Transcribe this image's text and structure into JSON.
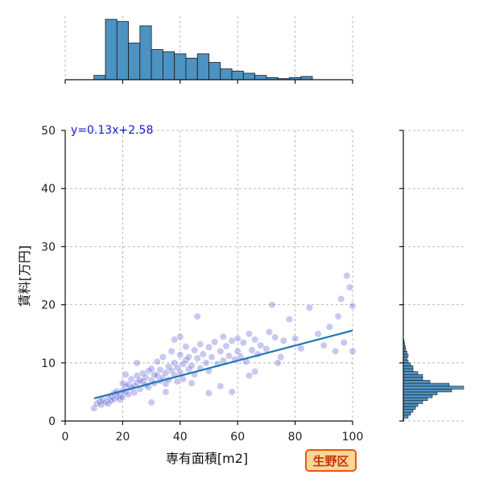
{
  "badge": "生野区",
  "chart_data": [
    {
      "type": "scatter",
      "xlabel": "専有面積[m2]",
      "ylabel": "賃料[万円]",
      "xlim": [
        0,
        100
      ],
      "ylim": [
        0,
        50
      ],
      "xticks": [
        "0",
        "20",
        "40",
        "60",
        "80",
        "100"
      ],
      "yticks": [
        "0",
        "10",
        "20",
        "30",
        "40",
        "50"
      ],
      "grid": true,
      "fit": {
        "equation": "y=0.13x+2.58",
        "slope": 0.13,
        "intercept": 2.58,
        "x_range": [
          10,
          100
        ]
      },
      "points": [
        [
          10,
          2.2
        ],
        [
          11,
          3.0
        ],
        [
          12,
          3.4
        ],
        [
          12.5,
          2.8
        ],
        [
          13,
          3.6
        ],
        [
          14,
          3.2
        ],
        [
          15,
          4.0
        ],
        [
          15,
          3.0
        ],
        [
          16,
          4.3
        ],
        [
          16,
          3.5
        ],
        [
          17,
          3.8
        ],
        [
          17,
          4.8
        ],
        [
          18,
          4.2
        ],
        [
          18,
          5.1
        ],
        [
          19,
          4.5
        ],
        [
          19,
          3.7
        ],
        [
          20,
          5.2
        ],
        [
          20,
          4.1
        ],
        [
          20,
          6.5
        ],
        [
          21,
          6.0
        ],
        [
          21,
          5.0
        ],
        [
          22,
          6.3
        ],
        [
          22,
          4.6
        ],
        [
          23,
          5.7
        ],
        [
          23,
          7.2
        ],
        [
          24,
          6.0
        ],
        [
          24,
          4.9
        ],
        [
          25,
          6.6
        ],
        [
          25,
          7.8
        ],
        [
          26,
          5.5
        ],
        [
          26,
          7.0
        ],
        [
          27,
          6.8
        ],
        [
          27,
          8.2
        ],
        [
          28,
          6.2
        ],
        [
          28,
          7.5
        ],
        [
          29,
          5.8
        ],
        [
          29,
          8.6
        ],
        [
          30,
          7.0
        ],
        [
          30,
          9.0
        ],
        [
          31,
          6.5
        ],
        [
          31,
          8.0
        ],
        [
          32,
          7.8
        ],
        [
          32,
          10.2
        ],
        [
          33,
          6.9
        ],
        [
          33,
          8.8
        ],
        [
          34,
          7.5
        ],
        [
          34,
          11.0
        ],
        [
          35,
          8.3
        ],
        [
          35,
          6.4
        ],
        [
          36,
          9.4
        ],
        [
          36,
          7.1
        ],
        [
          37,
          8.7
        ],
        [
          37,
          12.0
        ],
        [
          38,
          7.9
        ],
        [
          38,
          10.0
        ],
        [
          39,
          9.2
        ],
        [
          39,
          6.8
        ],
        [
          40,
          8.4
        ],
        [
          40,
          11.4
        ],
        [
          41,
          9.8
        ],
        [
          41,
          7.2
        ],
        [
          42,
          10.5
        ],
        [
          42,
          12.8
        ],
        [
          43,
          8.9
        ],
        [
          43,
          11.0
        ],
        [
          44,
          9.5
        ],
        [
          45,
          12.2
        ],
        [
          45,
          8.0
        ],
        [
          46,
          10.8
        ],
        [
          47,
          13.2
        ],
        [
          47,
          9.1
        ],
        [
          48,
          11.5
        ],
        [
          49,
          10.0
        ],
        [
          50,
          12.7
        ],
        [
          50,
          8.6
        ],
        [
          51,
          11.0
        ],
        [
          52,
          13.6
        ],
        [
          53,
          9.8
        ],
        [
          54,
          12.0
        ],
        [
          55,
          14.5
        ],
        [
          55,
          10.4
        ],
        [
          56,
          12.9
        ],
        [
          57,
          11.2
        ],
        [
          58,
          13.8
        ],
        [
          59,
          10.6
        ],
        [
          60,
          14.2
        ],
        [
          60,
          12.0
        ],
        [
          61,
          11.1
        ],
        [
          62,
          13.5
        ],
        [
          63,
          10.2
        ],
        [
          64,
          15.0
        ],
        [
          65,
          12.2
        ],
        [
          66,
          14.0
        ],
        [
          67,
          11.5
        ],
        [
          68,
          13.0
        ],
        [
          70,
          12.4
        ],
        [
          71,
          15.3
        ],
        [
          72,
          20.0
        ],
        [
          73,
          14.4
        ],
        [
          75,
          11.0
        ],
        [
          76,
          13.8
        ],
        [
          78,
          17.5
        ],
        [
          80,
          14.2
        ],
        [
          82,
          12.5
        ],
        [
          85,
          19.5
        ],
        [
          88,
          15.0
        ],
        [
          90,
          13.0
        ],
        [
          92,
          16.2
        ],
        [
          94,
          12.0
        ],
        [
          95,
          18.0
        ],
        [
          96,
          21.0
        ],
        [
          97,
          13.5
        ],
        [
          98,
          25.0
        ],
        [
          99,
          23.0
        ],
        [
          100,
          19.8
        ],
        [
          100,
          12.0
        ],
        [
          46,
          18.0
        ],
        [
          64,
          7.8
        ],
        [
          58,
          5.0
        ],
        [
          40,
          14.5
        ],
        [
          30,
          3.2
        ],
        [
          25,
          10.0
        ],
        [
          21,
          8.0
        ],
        [
          35,
          5.0
        ],
        [
          44,
          6.5
        ],
        [
          50,
          4.8
        ],
        [
          38,
          14.0
        ],
        [
          54,
          6.0
        ],
        [
          66,
          8.5
        ],
        [
          74,
          10.0
        ]
      ]
    },
    {
      "type": "bar",
      "orientation": "vertical",
      "title": "",
      "bin_width": 4,
      "bins_start": 10,
      "values": [
        2,
        28,
        27,
        17,
        25,
        14,
        13,
        12,
        10,
        12,
        8,
        5,
        4,
        3,
        2,
        1,
        0.5,
        1,
        1.5
      ]
    },
    {
      "type": "bar",
      "orientation": "horizontal",
      "bin_width": 0.5,
      "bins_start": 0,
      "values": [
        0.2,
        2,
        3,
        4,
        5,
        6,
        8,
        10,
        12,
        14,
        20,
        25,
        19,
        11,
        8,
        8,
        6,
        4,
        4,
        3,
        2,
        1.5,
        2,
        1.5,
        1,
        0.8,
        0.5,
        0.3
      ]
    }
  ]
}
